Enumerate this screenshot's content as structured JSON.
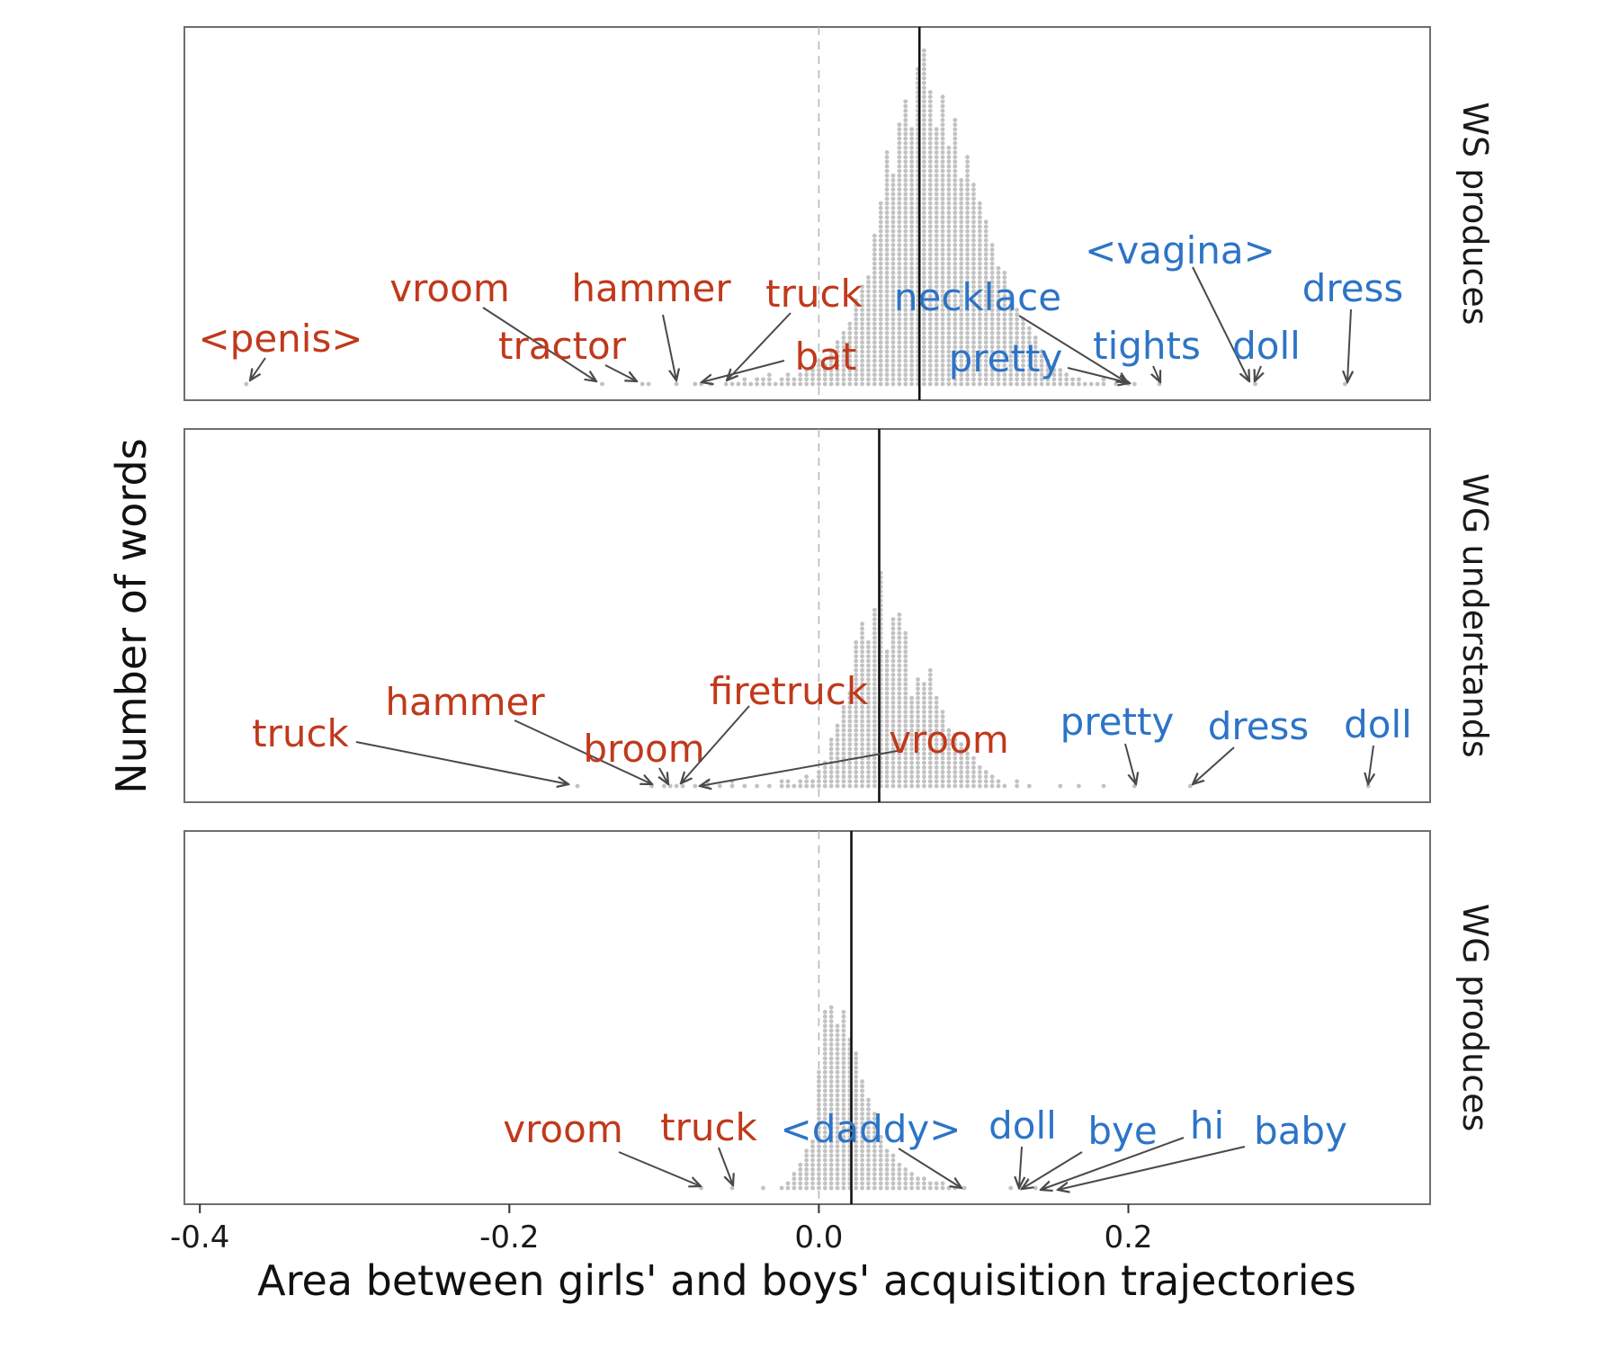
{
  "chart_data": {
    "type": "dotplot",
    "xlabel": "Area between girls' and boys' acquisition trajectories",
    "ylabel": "Number of words",
    "xlim": [
      -0.41,
      0.395
    ],
    "x_ticks": [
      "-0.4",
      "-0.2",
      "0.0",
      "0.2"
    ],
    "x_tick_values": [
      -0.4,
      -0.2,
      0.0,
      0.2
    ],
    "reference_line": 0.0,
    "colors": {
      "boy_words": "#C0391B",
      "girl_words": "#2D74C6",
      "dots": "#C2C2C2",
      "mean_line": "#111111"
    },
    "panels": [
      {
        "name": "WS produces",
        "mean": 0.065,
        "bin_width": 0.004,
        "counts": [
          [
            -0.37,
            1
          ],
          [
            -0.14,
            1
          ],
          [
            -0.114,
            1
          ],
          [
            -0.11,
            1
          ],
          [
            -0.092,
            1
          ],
          [
            -0.08,
            1
          ],
          [
            -0.076,
            1
          ],
          [
            -0.07,
            1
          ],
          [
            -0.06,
            1
          ],
          [
            -0.056,
            1
          ],
          [
            -0.052,
            1
          ],
          [
            -0.048,
            2
          ],
          [
            -0.044,
            1
          ],
          [
            -0.04,
            2
          ],
          [
            -0.036,
            2
          ],
          [
            -0.032,
            3
          ],
          [
            -0.028,
            1
          ],
          [
            -0.024,
            2
          ],
          [
            -0.02,
            3
          ],
          [
            -0.016,
            2
          ],
          [
            -0.012,
            3
          ],
          [
            -0.008,
            4
          ],
          [
            -0.004,
            4
          ],
          [
            0.0,
            6
          ],
          [
            0.004,
            5
          ],
          [
            0.008,
            8
          ],
          [
            0.012,
            10
          ],
          [
            0.016,
            12
          ],
          [
            0.02,
            14
          ],
          [
            0.024,
            19
          ],
          [
            0.028,
            22
          ],
          [
            0.032,
            24
          ],
          [
            0.036,
            33
          ],
          [
            0.04,
            40
          ],
          [
            0.044,
            51
          ],
          [
            0.048,
            46
          ],
          [
            0.052,
            57
          ],
          [
            0.056,
            62
          ],
          [
            0.06,
            56
          ],
          [
            0.064,
            69
          ],
          [
            0.068,
            73
          ],
          [
            0.072,
            64
          ],
          [
            0.076,
            56
          ],
          [
            0.08,
            63
          ],
          [
            0.084,
            52
          ],
          [
            0.088,
            58
          ],
          [
            0.092,
            45
          ],
          [
            0.096,
            50
          ],
          [
            0.1,
            44
          ],
          [
            0.104,
            40
          ],
          [
            0.108,
            36
          ],
          [
            0.112,
            31
          ],
          [
            0.116,
            26
          ],
          [
            0.12,
            25
          ],
          [
            0.124,
            20
          ],
          [
            0.128,
            17
          ],
          [
            0.132,
            15
          ],
          [
            0.136,
            13
          ],
          [
            0.14,
            11
          ],
          [
            0.144,
            8
          ],
          [
            0.148,
            6
          ],
          [
            0.152,
            5
          ],
          [
            0.156,
            4
          ],
          [
            0.16,
            3
          ],
          [
            0.164,
            2
          ],
          [
            0.168,
            2
          ],
          [
            0.172,
            1
          ],
          [
            0.176,
            1
          ],
          [
            0.18,
            1
          ],
          [
            0.184,
            2
          ],
          [
            0.192,
            1
          ],
          [
            0.2,
            1
          ],
          [
            0.204,
            1
          ],
          [
            0.22,
            1
          ],
          [
            0.282,
            2
          ],
          [
            0.34,
            1
          ]
        ],
        "labels": [
          {
            "text": "<penis>",
            "x": -0.37,
            "side": "boy"
          },
          {
            "text": "vroom",
            "x": -0.14,
            "side": "boy"
          },
          {
            "text": "tractor",
            "x": -0.114,
            "side": "boy"
          },
          {
            "text": "hammer",
            "x": -0.092,
            "side": "boy"
          },
          {
            "text": "truck",
            "x": -0.06,
            "side": "boy"
          },
          {
            "text": "bat",
            "x": -0.076,
            "side": "boy"
          },
          {
            "text": "necklace",
            "x": 0.2,
            "side": "girl"
          },
          {
            "text": "pretty",
            "x": 0.204,
            "side": "girl"
          },
          {
            "text": "tights",
            "x": 0.22,
            "side": "girl"
          },
          {
            "text": "<vagina>",
            "x": 0.28,
            "side": "girl"
          },
          {
            "text": "doll",
            "x": 0.284,
            "side": "girl"
          },
          {
            "text": "dress",
            "x": 0.34,
            "side": "girl"
          }
        ]
      },
      {
        "name": "WG understands",
        "mean": 0.039,
        "bin_width": 0.004,
        "counts": [
          [
            -0.156,
            1
          ],
          [
            -0.108,
            1
          ],
          [
            -0.1,
            1
          ],
          [
            -0.096,
            1
          ],
          [
            -0.092,
            1
          ],
          [
            -0.088,
            1
          ],
          [
            -0.08,
            1
          ],
          [
            -0.072,
            2
          ],
          [
            -0.064,
            1
          ],
          [
            -0.056,
            2
          ],
          [
            -0.048,
            1
          ],
          [
            -0.04,
            1
          ],
          [
            -0.032,
            1
          ],
          [
            -0.024,
            2
          ],
          [
            -0.02,
            2
          ],
          [
            -0.016,
            1
          ],
          [
            -0.012,
            2
          ],
          [
            -0.008,
            3
          ],
          [
            -0.004,
            2
          ],
          [
            0.0,
            4
          ],
          [
            0.004,
            6
          ],
          [
            0.008,
            11
          ],
          [
            0.012,
            14
          ],
          [
            0.016,
            18
          ],
          [
            0.02,
            21
          ],
          [
            0.024,
            32
          ],
          [
            0.028,
            36
          ],
          [
            0.032,
            32
          ],
          [
            0.036,
            39
          ],
          [
            0.04,
            47
          ],
          [
            0.044,
            30
          ],
          [
            0.048,
            37
          ],
          [
            0.052,
            38
          ],
          [
            0.056,
            34
          ],
          [
            0.06,
            20
          ],
          [
            0.064,
            24
          ],
          [
            0.068,
            23
          ],
          [
            0.072,
            26
          ],
          [
            0.076,
            20
          ],
          [
            0.08,
            17
          ],
          [
            0.084,
            13
          ],
          [
            0.088,
            12
          ],
          [
            0.092,
            10
          ],
          [
            0.096,
            8
          ],
          [
            0.1,
            7
          ],
          [
            0.104,
            5
          ],
          [
            0.108,
            4
          ],
          [
            0.112,
            3
          ],
          [
            0.116,
            2
          ],
          [
            0.12,
            1
          ],
          [
            0.128,
            2
          ],
          [
            0.136,
            1
          ],
          [
            0.156,
            1
          ],
          [
            0.168,
            1
          ],
          [
            0.184,
            1
          ],
          [
            0.204,
            1
          ],
          [
            0.24,
            1
          ],
          [
            0.355,
            1
          ]
        ],
        "labels": [
          {
            "text": "truck",
            "x": -0.156,
            "side": "boy"
          },
          {
            "text": "hammer",
            "x": -0.108,
            "side": "boy"
          },
          {
            "text": "broom",
            "x": -0.096,
            "side": "boy"
          },
          {
            "text": "firetruck",
            "x": -0.088,
            "side": "boy"
          },
          {
            "text": "vroom",
            "x": -0.08,
            "side": "boy"
          },
          {
            "text": "pretty",
            "x": 0.204,
            "side": "girl"
          },
          {
            "text": "dress",
            "x": 0.24,
            "side": "girl"
          },
          {
            "text": "doll",
            "x": 0.355,
            "side": "girl"
          }
        ]
      },
      {
        "name": "WG produces",
        "mean": 0.021,
        "bin_width": 0.004,
        "counts": [
          [
            -0.076,
            1
          ],
          [
            -0.056,
            1
          ],
          [
            -0.036,
            1
          ],
          [
            -0.024,
            1
          ],
          [
            -0.02,
            2
          ],
          [
            -0.016,
            4
          ],
          [
            -0.012,
            6
          ],
          [
            -0.008,
            9
          ],
          [
            -0.004,
            11
          ],
          [
            0.0,
            26
          ],
          [
            0.004,
            39
          ],
          [
            0.008,
            40
          ],
          [
            0.012,
            36
          ],
          [
            0.016,
            39
          ],
          [
            0.02,
            33
          ],
          [
            0.024,
            30
          ],
          [
            0.028,
            24
          ],
          [
            0.032,
            20
          ],
          [
            0.036,
            17
          ],
          [
            0.04,
            12
          ],
          [
            0.044,
            9
          ],
          [
            0.048,
            8
          ],
          [
            0.052,
            6
          ],
          [
            0.056,
            5
          ],
          [
            0.06,
            4
          ],
          [
            0.064,
            3
          ],
          [
            0.068,
            3
          ],
          [
            0.072,
            2
          ],
          [
            0.076,
            2
          ],
          [
            0.08,
            2
          ],
          [
            0.084,
            1
          ],
          [
            0.088,
            1
          ],
          [
            0.094,
            1
          ],
          [
            0.124,
            1
          ],
          [
            0.13,
            1
          ],
          [
            0.14,
            1
          ],
          [
            0.146,
            1
          ]
        ],
        "labels": [
          {
            "text": "vroom",
            "x": -0.076,
            "side": "boy"
          },
          {
            "text": "truck",
            "x": -0.056,
            "side": "boy"
          },
          {
            "text": "<daddy>",
            "x": 0.088,
            "side": "girl"
          },
          {
            "text": "doll",
            "x": 0.128,
            "side": "girl"
          },
          {
            "text": "bye",
            "x": 0.13,
            "side": "girl"
          },
          {
            "text": "hi",
            "x": 0.14,
            "side": "girl"
          },
          {
            "text": "baby",
            "x": 0.146,
            "side": "girl"
          }
        ]
      }
    ]
  }
}
